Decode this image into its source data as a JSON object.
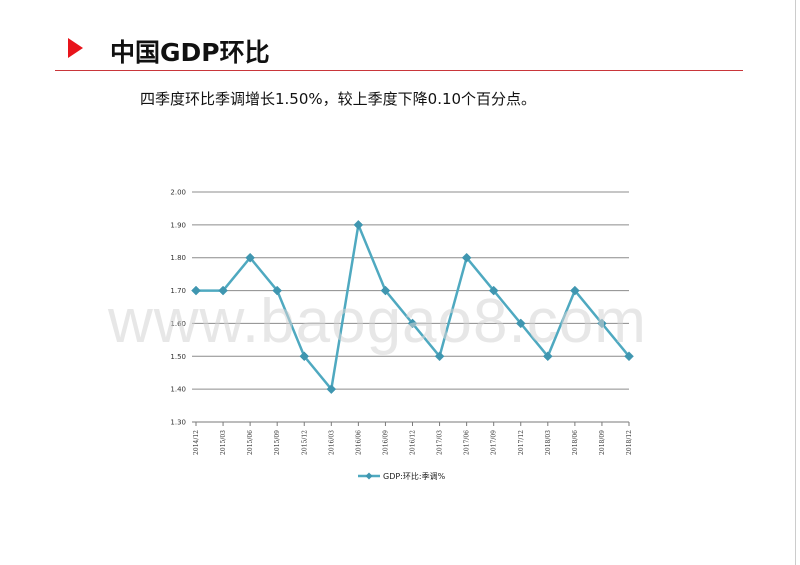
{
  "header": {
    "title": "中国GDP环比",
    "subtitle": "四季度环比季调增长1.50%，较上季度下降0.10个百分点。"
  },
  "watermark": "www.baogao8.com",
  "colors": {
    "accent": "#e8141b",
    "rule": "#c9363a",
    "series": "#4fa9c0"
  },
  "chart_data": {
    "type": "line",
    "x": [
      "2014/12",
      "2015/03",
      "2015/06",
      "2015/09",
      "2015/12",
      "2016/03",
      "2016/06",
      "2016/09",
      "2016/12",
      "2017/03",
      "2017/06",
      "2017/09",
      "2017/12",
      "2018/03",
      "2018/06",
      "2018/09",
      "2018/12"
    ],
    "series": [
      {
        "name": "GDP:环比:季调%",
        "values": [
          1.7,
          1.7,
          1.8,
          1.7,
          1.5,
          1.4,
          1.9,
          1.7,
          1.6,
          1.5,
          1.8,
          1.7,
          1.6,
          1.5,
          1.7,
          1.6,
          1.5
        ]
      }
    ],
    "yticks": [
      "1.30",
      "1.40",
      "1.50",
      "1.60",
      "1.70",
      "1.80",
      "1.90",
      "2.00"
    ],
    "ylim": [
      1.3,
      2.0
    ],
    "grid": true,
    "legend": "bottom",
    "marker": "diamond"
  }
}
